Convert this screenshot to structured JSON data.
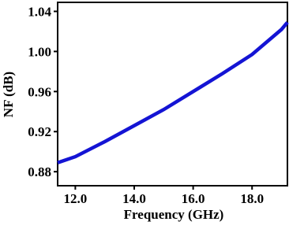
{
  "chart_data": {
    "type": "line",
    "x_label": "Frequency (GHz)",
    "y_label": "NF (dB)",
    "x": [
      11.4,
      12,
      13,
      14,
      15,
      16,
      17,
      18,
      19,
      19.2
    ],
    "series": [
      {
        "color": "#1414d4",
        "values": [
          0.889,
          0.895,
          0.91,
          0.926,
          0.942,
          0.96,
          0.978,
          0.997,
          1.022,
          1.029
        ]
      }
    ],
    "xlim": [
      11.4,
      19.2
    ],
    "ylim": [
      0.866,
      1.049
    ],
    "xticks": [
      {
        "value": 12,
        "label": "12.0"
      },
      {
        "value": 14,
        "label": "14.0"
      },
      {
        "value": 16,
        "label": "16.0"
      },
      {
        "value": 18,
        "label": "18.0"
      }
    ],
    "yticks": [
      0.88,
      0.92,
      0.96,
      {
        "value": 1,
        "label": "1.00"
      },
      1.04
    ]
  }
}
